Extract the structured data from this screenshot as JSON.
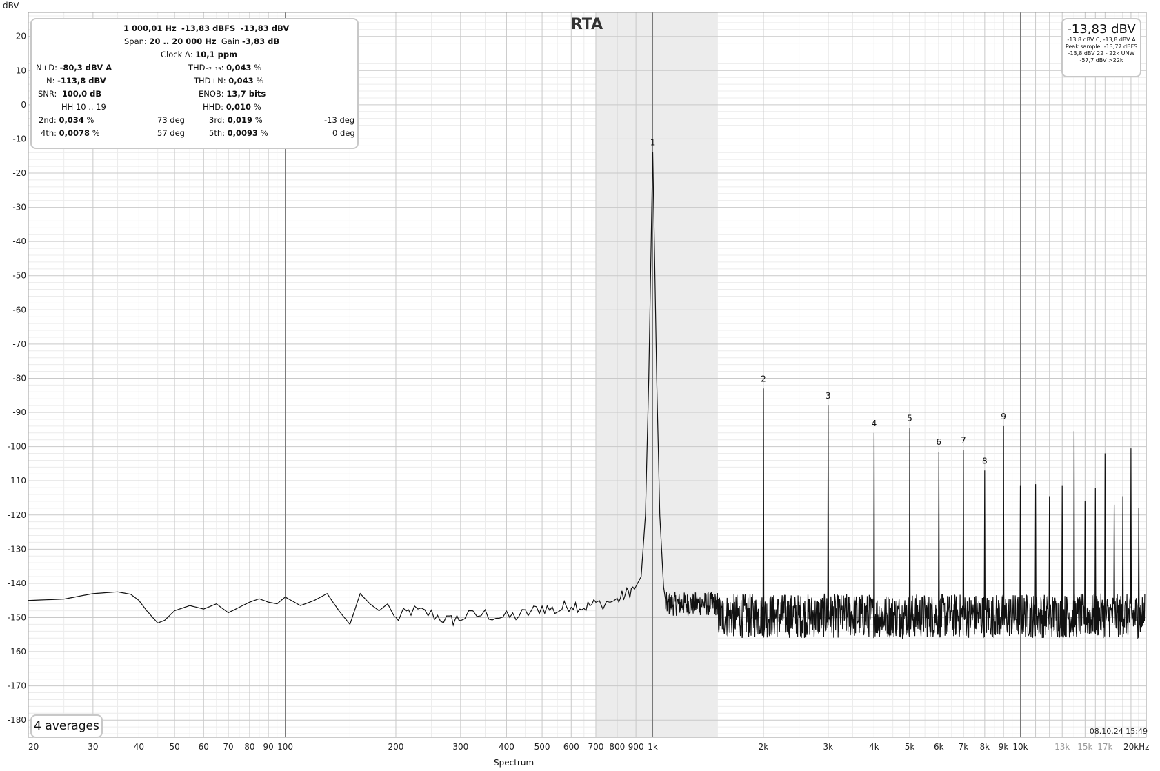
{
  "chart_data": {
    "type": "line",
    "title": "RTA",
    "ylabel": "dBV",
    "xlabel": "",
    "xscale": "log",
    "xlim": [
      20,
      22000
    ],
    "ylim": [
      -185,
      27
    ],
    "grid": true,
    "x_tick_labels": [
      "20",
      "30",
      "40",
      "50",
      "60",
      "70",
      "80",
      "90",
      "100",
      "200",
      "300",
      "400",
      "500",
      "600",
      "700",
      "800",
      "900",
      "1k",
      "2k",
      "3k",
      "4k",
      "5k",
      "6k",
      "7k",
      "8k",
      "9k",
      "10k",
      "13k",
      "15k",
      "17k",
      "20kHz"
    ],
    "y_tick_labels": [
      "20",
      "10",
      "0",
      "-10",
      "-20",
      "-30",
      "-40",
      "-50",
      "-60",
      "-70",
      "-80",
      "-90",
      "-100",
      "-110",
      "-120",
      "-130",
      "-140",
      "-150",
      "-160",
      "-170",
      "-180"
    ],
    "shaded_band_hz": [
      700,
      1500
    ],
    "series": [
      {
        "name": "Spectrum",
        "color": "#111111",
        "noise_floor_curve": [
          [
            20,
            -145
          ],
          [
            25,
            -144.6
          ],
          [
            30,
            -143
          ],
          [
            35,
            -142.5
          ],
          [
            38,
            -143.2
          ],
          [
            40,
            -145
          ],
          [
            42,
            -148
          ],
          [
            45,
            -151.6
          ],
          [
            47,
            -150.8
          ],
          [
            50,
            -148
          ],
          [
            55,
            -146.5
          ],
          [
            60,
            -147.5
          ],
          [
            65,
            -146
          ],
          [
            70,
            -148.6
          ],
          [
            75,
            -147
          ],
          [
            80,
            -145.5
          ],
          [
            85,
            -144.5
          ],
          [
            90,
            -145.5
          ],
          [
            95,
            -146
          ],
          [
            100,
            -144
          ],
          [
            110,
            -146.5
          ],
          [
            120,
            -145
          ],
          [
            130,
            -143
          ],
          [
            140,
            -148
          ],
          [
            150,
            -152
          ],
          [
            160,
            -143
          ],
          [
            170,
            -146
          ],
          [
            180,
            -148
          ],
          [
            190,
            -146
          ],
          [
            200,
            -150.5
          ],
          [
            220,
            -148
          ],
          [
            250,
            -149
          ],
          [
            280,
            -151
          ],
          [
            300,
            -150
          ],
          [
            350,
            -149
          ],
          [
            400,
            -150
          ],
          [
            450,
            -149
          ],
          [
            500,
            -147
          ],
          [
            550,
            -148
          ],
          [
            600,
            -146
          ],
          [
            650,
            -147
          ],
          [
            700,
            -146
          ],
          [
            800,
            -145
          ],
          [
            850,
            -143
          ],
          [
            900,
            -141
          ]
        ],
        "fundamental": {
          "x": 1000.01,
          "y": -13.83,
          "label": "1"
        },
        "harmonics": [
          {
            "x": 2000,
            "y": -83.0,
            "label": "2"
          },
          {
            "x": 3000,
            "y": -88.0,
            "label": "3"
          },
          {
            "x": 4000,
            "y": -96.0,
            "label": "4"
          },
          {
            "x": 5000,
            "y": -94.5,
            "label": "5"
          },
          {
            "x": 6000,
            "y": -101.5,
            "label": "6"
          },
          {
            "x": 7000,
            "y": -101.0,
            "label": "7"
          },
          {
            "x": 8000,
            "y": -107.0,
            "label": "8"
          },
          {
            "x": 9000,
            "y": -94.0,
            "label": "9"
          },
          {
            "x": 10000,
            "y": -111.5,
            "label": ""
          },
          {
            "x": 11000,
            "y": -111.0,
            "label": ""
          },
          {
            "x": 12000,
            "y": -114.5,
            "label": ""
          },
          {
            "x": 13000,
            "y": -111.5,
            "label": ""
          },
          {
            "x": 14000,
            "y": -95.5,
            "label": ""
          },
          {
            "x": 15000,
            "y": -116.0,
            "label": ""
          },
          {
            "x": 16000,
            "y": -112.0,
            "label": ""
          },
          {
            "x": 17000,
            "y": -102.0,
            "label": ""
          },
          {
            "x": 18000,
            "y": -117.0,
            "label": ""
          },
          {
            "x": 19000,
            "y": -114.5,
            "label": ""
          },
          {
            "x": 20000,
            "y": -100.5,
            "label": ""
          },
          {
            "x": 21000,
            "y": -118.0,
            "label": ""
          }
        ]
      }
    ]
  },
  "info": {
    "line1_freq": "1 000,01 Hz",
    "line1_dbfs": "-13,83 dBFS",
    "line1_dbv": "-13,83 dBV",
    "span_label": "Span:",
    "span_value": "20 .. 20 000 Hz",
    "gain_label": "Gain",
    "gain_value": "-3,83 dB",
    "clock_label": "Clock Δ:",
    "clock_value": "10,1 ppm",
    "nd_label": "N+D:",
    "nd_value": "-80,3 dBV A",
    "thd_label": "THD",
    "thd_sub": "H2..19",
    "thd_value": "0,043",
    "n_label": "N:",
    "n_value": "-113,8 dBV",
    "thdn_label": "THD+N:",
    "thdn_value": "0,043",
    "snr_label": "SNR:",
    "snr_value": "100,0 dB",
    "enob_label": "ENOB:",
    "enob_value": "13,7 bits",
    "hh_label": "HH 10 .. 19",
    "hhd_label": "HHD:",
    "hhd_value": "0,010",
    "h2_label": "2nd:",
    "h2_value": "0,034",
    "h2_phase": "73 deg",
    "h3_label": "3rd:",
    "h3_value": "0,019",
    "h3_phase": "-13 deg",
    "h4_label": "4th:",
    "h4_value": "0,0078",
    "h4_phase": "57 deg",
    "h5_label": "5th:",
    "h5_value": "0,0093",
    "h5_phase": "0 deg",
    "percent": "%"
  },
  "level": {
    "main": "-13,83 dBV",
    "l1": "-13,8 dBV C, -13,8 dBV A",
    "l2": "Peak sample: -13,77 dBFS",
    "l3": "-13,8 dBV 22 - 22k UNW",
    "l4": "-57,7 dBV >22k"
  },
  "averages": "4 averages",
  "timestamp": "08.10.24 15:49",
  "legend": "Spectrum"
}
